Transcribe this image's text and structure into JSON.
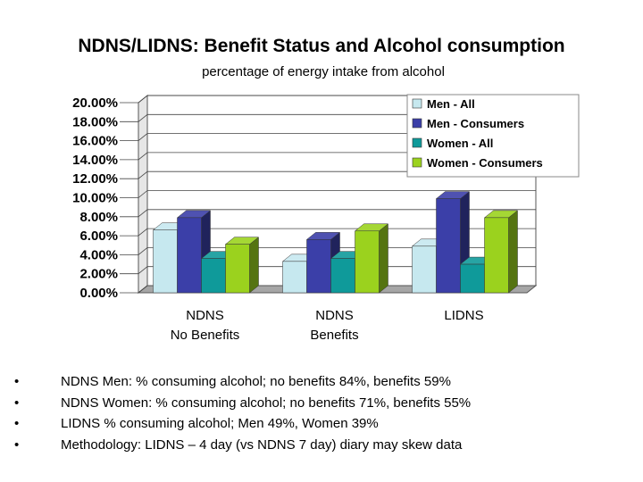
{
  "slide": {
    "title": "NDNS/LIDNS: Benefit Status and Alcohol consumption",
    "bullet_char": "•",
    "bullets": [
      "NDNS Men: % consuming alcohol; no benefits 84%, benefits 59%",
      "NDNS Women: % consuming alcohol; no benefits 71%, benefits 55%",
      "LIDNS % consuming alcohol; Men 49%, Women 39%",
      "Methodology: LIDNS – 4 day (vs NDNS 7 day) diary may skew data"
    ]
  },
  "chart_data": {
    "type": "bar",
    "subtitle": "percentage of energy intake from alcohol",
    "categories": [
      [
        "NDNS",
        "No Benefits"
      ],
      [
        "NDNS",
        "Benefits"
      ],
      [
        "LIDNS"
      ]
    ],
    "series": [
      {
        "name": "Men - All",
        "values": [
          6.6,
          3.3,
          4.9
        ],
        "color": "#c6e8ef"
      },
      {
        "name": "Men - Consumers",
        "values": [
          7.9,
          5.6,
          9.9
        ],
        "color": "#3b3fa8"
      },
      {
        "name": "Women - All",
        "values": [
          3.6,
          3.6,
          3.0
        ],
        "color": "#0f9a9a"
      },
      {
        "name": "Women - Consumers",
        "values": [
          5.1,
          6.5,
          7.9
        ],
        "color": "#9bd21e"
      }
    ],
    "yticks": [
      "0.00%",
      "2.00%",
      "4.00%",
      "6.00%",
      "8.00%",
      "10.00%",
      "12.00%",
      "14.00%",
      "16.00%",
      "18.00%",
      "20.00%"
    ],
    "ylim": [
      0,
      20
    ],
    "grid": true,
    "legend": "top-right",
    "three_d": true
  }
}
